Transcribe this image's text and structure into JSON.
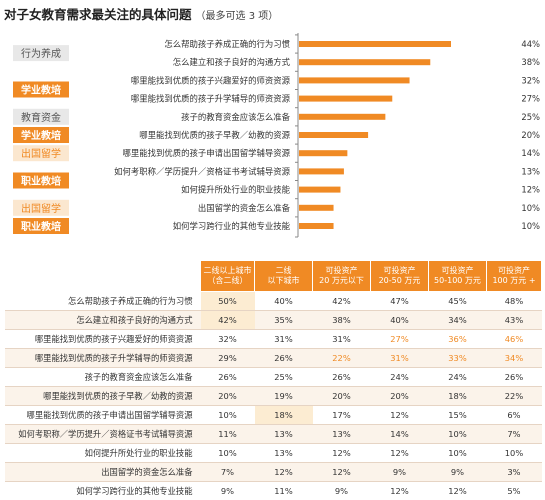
{
  "title": "对子女教育需求最关注的具体问题",
  "subtitle": "（最多可选 3 项）",
  "colors": {
    "accent": "#f08a24",
    "group_fill": "#f08a24",
    "light_fill": "#fbe7cf",
    "grey_fill": "#e8e8e8"
  },
  "groups": [
    {
      "label": "行为养成",
      "style": "grey"
    },
    {
      "label": "学业教培",
      "style": "orange"
    },
    {
      "label": "教育资金",
      "style": "grey"
    },
    {
      "label": "学业教培",
      "style": "orange"
    },
    {
      "label": "出国留学",
      "style": "light"
    },
    {
      "label": "职业教培",
      "style": "orange"
    },
    {
      "label": "出国留学",
      "style": "light"
    },
    {
      "label": "职业教培",
      "style": "orange"
    }
  ],
  "chart_data": {
    "type": "bar",
    "orientation": "horizontal",
    "title": "对子女教育需求最关注的具体问题",
    "categories": [
      "怎么帮助孩子养成正确的行为习惯",
      "怎么建立和孩子良好的沟通方式",
      "哪里能找到优质的孩子兴趣爱好的师资资源",
      "哪里能找到优质的孩子升学辅导的师资资源",
      "孩子的教育资金应该怎么准备",
      "哪里能找到优质的孩子早教／幼教的资源",
      "哪里能找到优质的孩子申请出国留学辅导资源",
      "如何考职称／学历提升／资格证书考试辅导资源",
      "如何提升所处行业的职业技能",
      "出国留学的资金怎么准备",
      "如何学习跨行业的其他专业技能"
    ],
    "values": [
      44,
      38,
      32,
      27,
      25,
      20,
      14,
      13,
      12,
      10,
      10
    ],
    "value_labels": [
      "44%",
      "38%",
      "32%",
      "27%",
      "25%",
      "20%",
      "14%",
      "13%",
      "12%",
      "10%",
      "10%"
    ],
    "xlim": [
      0,
      50
    ]
  },
  "table": {
    "headers": [
      [
        "",
        ""
      ],
      [
        "二线以上城市",
        "（含二线）"
      ],
      [
        "二线",
        "以下城市"
      ],
      [
        "可投资产",
        "20 万元以下"
      ],
      [
        "可投资产",
        "20-50 万元"
      ],
      [
        "可投资产",
        "50-100 万元"
      ],
      [
        "可投资产",
        "100 万元 +"
      ]
    ],
    "rows": [
      {
        "label": "怎么帮助孩子养成正确的行为习惯",
        "values": [
          "50%",
          "40%",
          "42%",
          "47%",
          "45%",
          "48%"
        ]
      },
      {
        "label": "怎么建立和孩子良好的沟通方式",
        "values": [
          "42%",
          "35%",
          "38%",
          "40%",
          "34%",
          "43%"
        ]
      },
      {
        "label": "哪里能找到优质的孩子兴趣爱好的师资资源",
        "values": [
          "32%",
          "31%",
          "31%",
          "27%",
          "36%",
          "46%"
        ]
      },
      {
        "label": "哪里能找到优质的孩子升学辅导的师资资源",
        "values": [
          "29%",
          "26%",
          "22%",
          "31%",
          "33%",
          "34%"
        ]
      },
      {
        "label": "孩子的教育资金应该怎么准备",
        "values": [
          "26%",
          "25%",
          "26%",
          "24%",
          "24%",
          "26%"
        ]
      },
      {
        "label": "哪里能找到优质的孩子早教／幼教的资源",
        "values": [
          "20%",
          "19%",
          "20%",
          "20%",
          "18%",
          "22%"
        ]
      },
      {
        "label": "哪里能找到优质的孩子申请出国留学辅导资源",
        "values": [
          "10%",
          "18%",
          "17%",
          "12%",
          "15%",
          "6%"
        ]
      },
      {
        "label": "如何考职称／学历提升／资格证书考试辅导资源",
        "values": [
          "11%",
          "13%",
          "13%",
          "14%",
          "10%",
          "7%"
        ]
      },
      {
        "label": "如何提升所处行业的职业技能",
        "values": [
          "10%",
          "13%",
          "12%",
          "12%",
          "10%",
          "10%"
        ]
      },
      {
        "label": "出国留学的资金怎么准备",
        "values": [
          "7%",
          "12%",
          "12%",
          "9%",
          "9%",
          "3%"
        ]
      },
      {
        "label": "如何学习跨行业的其他专业技能",
        "values": [
          "9%",
          "11%",
          "9%",
          "12%",
          "12%",
          "5%"
        ]
      }
    ]
  }
}
